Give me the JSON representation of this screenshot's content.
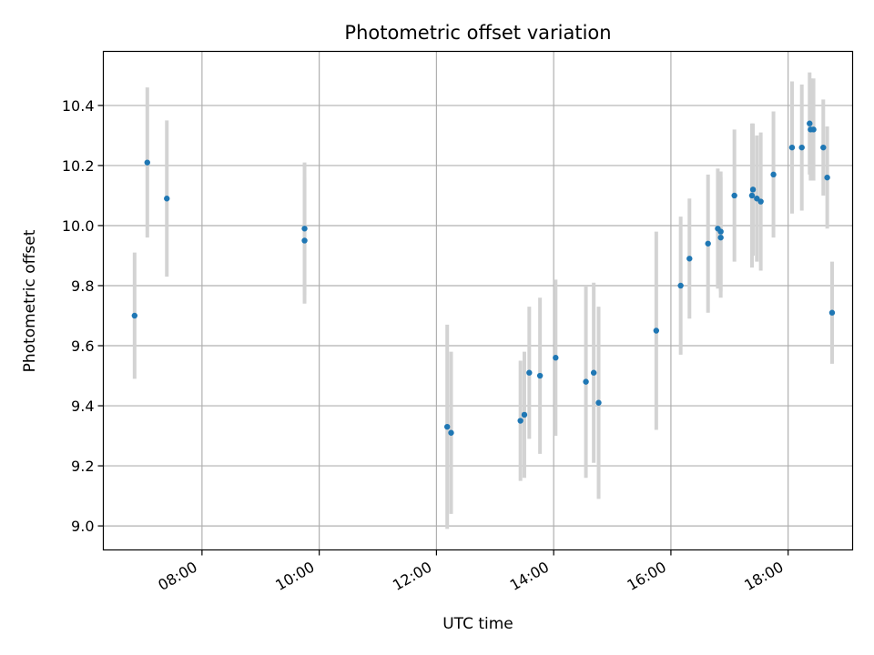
{
  "chart_data": {
    "type": "scatter",
    "title": "Photometric offset variation",
    "xlabel": "UTC time",
    "ylabel": "Photometric offset",
    "x_ticks": [
      "08:00",
      "10:00",
      "12:00",
      "14:00",
      "16:00",
      "18:00"
    ],
    "x_tick_hours": [
      8,
      10,
      12,
      14,
      16,
      18
    ],
    "y_ticks": [
      "9.0",
      "9.2",
      "9.4",
      "9.6",
      "9.8",
      "10.0",
      "10.2",
      "10.4"
    ],
    "y_tick_values": [
      9.0,
      9.2,
      9.4,
      9.6,
      9.8,
      10.0,
      10.2,
      10.4
    ],
    "xlim": [
      "06:19",
      "19:06"
    ],
    "ylim": [
      8.92,
      10.58
    ],
    "grid": true,
    "marker_color": "#1f77b4",
    "errorbar_color": "#d3d3d3",
    "points": [
      {
        "time": "06:51",
        "offset": 9.7,
        "error": 0.21
      },
      {
        "time": "07:04",
        "offset": 10.21,
        "error": 0.25
      },
      {
        "time": "07:24",
        "offset": 10.09,
        "error": 0.26
      },
      {
        "time": "09:45",
        "offset": 9.99,
        "error": 0.22
      },
      {
        "time": "09:45",
        "offset": 9.95,
        "error": 0.21
      },
      {
        "time": "12:11",
        "offset": 9.33,
        "error": 0.34
      },
      {
        "time": "12:15",
        "offset": 9.31,
        "error": 0.27
      },
      {
        "time": "13:26",
        "offset": 9.35,
        "error": 0.2
      },
      {
        "time": "13:30",
        "offset": 9.37,
        "error": 0.21
      },
      {
        "time": "13:35",
        "offset": 9.51,
        "error": 0.22
      },
      {
        "time": "13:46",
        "offset": 9.5,
        "error": 0.26
      },
      {
        "time": "14:02",
        "offset": 9.56,
        "error": 0.26
      },
      {
        "time": "14:33",
        "offset": 9.48,
        "error": 0.32
      },
      {
        "time": "14:41",
        "offset": 9.51,
        "error": 0.3
      },
      {
        "time": "14:46",
        "offset": 9.41,
        "error": 0.32
      },
      {
        "time": "15:45",
        "offset": 9.65,
        "error": 0.33
      },
      {
        "time": "16:10",
        "offset": 9.8,
        "error": 0.23
      },
      {
        "time": "16:19",
        "offset": 9.89,
        "error": 0.2
      },
      {
        "time": "16:38",
        "offset": 9.94,
        "error": 0.23
      },
      {
        "time": "16:48",
        "offset": 9.99,
        "error": 0.2
      },
      {
        "time": "16:51",
        "offset": 9.98,
        "error": 0.2
      },
      {
        "time": "16:51",
        "offset": 9.96,
        "error": 0.2
      },
      {
        "time": "17:05",
        "offset": 10.1,
        "error": 0.22
      },
      {
        "time": "17:23",
        "offset": 10.1,
        "error": 0.24
      },
      {
        "time": "17:24",
        "offset": 10.12,
        "error": 0.22
      },
      {
        "time": "17:28",
        "offset": 10.09,
        "error": 0.21
      },
      {
        "time": "17:32",
        "offset": 10.08,
        "error": 0.23
      },
      {
        "time": "17:45",
        "offset": 10.17,
        "error": 0.21
      },
      {
        "time": "18:04",
        "offset": 10.26,
        "error": 0.22
      },
      {
        "time": "18:14",
        "offset": 10.26,
        "error": 0.21
      },
      {
        "time": "18:22",
        "offset": 10.34,
        "error": 0.17
      },
      {
        "time": "18:23",
        "offset": 10.32,
        "error": 0.17
      },
      {
        "time": "18:26",
        "offset": 10.32,
        "error": 0.17
      },
      {
        "time": "18:36",
        "offset": 10.26,
        "error": 0.16
      },
      {
        "time": "18:40",
        "offset": 10.16,
        "error": 0.17
      },
      {
        "time": "18:45",
        "offset": 9.71,
        "error": 0.17
      }
    ]
  }
}
